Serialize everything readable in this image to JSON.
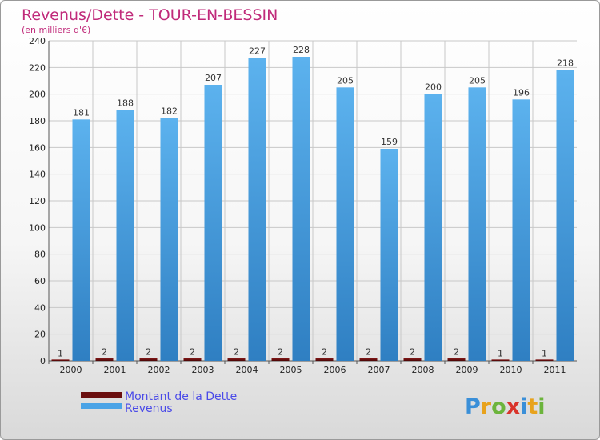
{
  "chart_data": {
    "type": "bar",
    "title": "Revenus/Dette - TOUR-EN-BESSIN",
    "subtitle": "(en milliers d'€)",
    "categories": [
      "2000",
      "2001",
      "2002",
      "2003",
      "2004",
      "2005",
      "2006",
      "2007",
      "2008",
      "2009",
      "2010",
      "2011"
    ],
    "series": [
      {
        "name": "Montant de la Dette",
        "values": [
          1,
          2,
          2,
          2,
          2,
          2,
          2,
          2,
          2,
          2,
          1,
          1
        ],
        "color": "#6b0f0f"
      },
      {
        "name": "Revenus",
        "values": [
          181,
          188,
          182,
          207,
          227,
          228,
          205,
          159,
          200,
          205,
          196,
          218
        ],
        "color": "#4aa3e6"
      }
    ],
    "ylim": [
      0,
      240
    ],
    "yticks": [
      0,
      20,
      40,
      60,
      80,
      100,
      120,
      140,
      160,
      180,
      200,
      220,
      240
    ],
    "grid": true,
    "legend": "bottom-left"
  },
  "logo": {
    "letters": [
      "P",
      "r",
      "o",
      "x",
      "i",
      "t",
      "i"
    ]
  },
  "colors": {
    "title": "#c02a7a",
    "grid": "#c8c8c8",
    "legend_text": "#4a4ae8"
  }
}
